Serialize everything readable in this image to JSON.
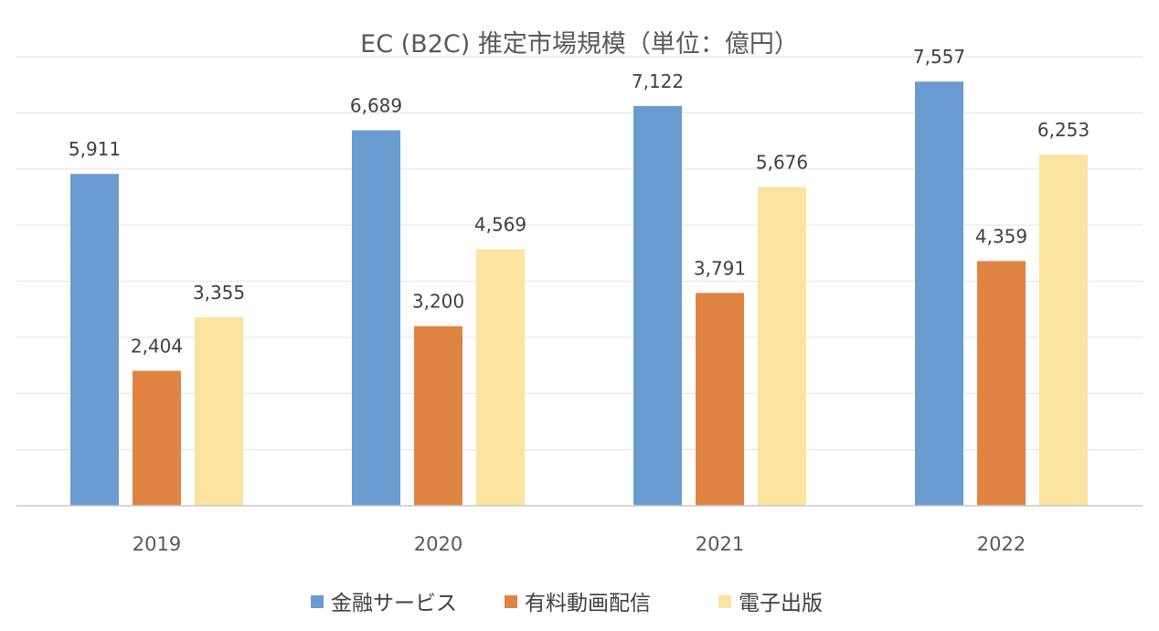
{
  "chart_data": {
    "type": "bar",
    "title": "EC (B2C) 推定市場規模（単位：億円）",
    "categories": [
      "2019",
      "2020",
      "2021",
      "2022"
    ],
    "series": [
      {
        "name": "金融サービス",
        "color": "#6a9bd1",
        "values": [
          5911,
          6689,
          7122,
          7557
        ]
      },
      {
        "name": "有料動画配信",
        "color": "#df8443",
        "values": [
          2404,
          3200,
          3791,
          4359
        ]
      },
      {
        "name": "電子出版",
        "color": "#fbe3a0",
        "values": [
          3355,
          4569,
          5676,
          6253
        ]
      }
    ],
    "data_labels": [
      [
        "5,911",
        "6,689",
        "7,122",
        "7,557"
      ],
      [
        "2,404",
        "3,200",
        "3,791",
        "4,359"
      ],
      [
        "3,355",
        "4,569",
        "5,676",
        "6,253"
      ]
    ],
    "ylim": [
      0,
      8000
    ],
    "grid": true,
    "gridline_step": 1000,
    "y_axis_labels_shown": false,
    "legend_position": "bottom",
    "gridline_color": "#e8e8e8",
    "axis_color": "#c8c8c8"
  }
}
